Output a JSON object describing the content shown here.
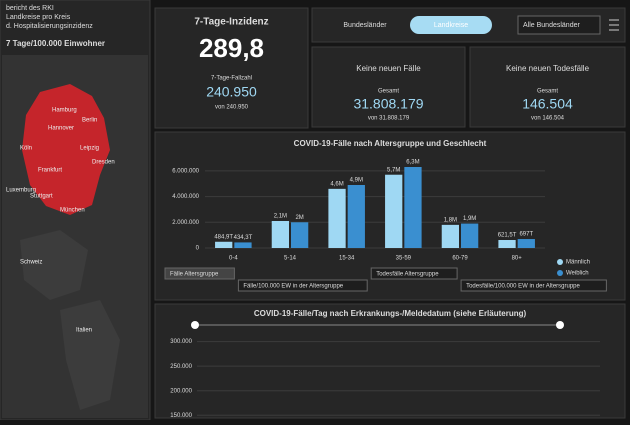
{
  "left_panel": {
    "header": [
      "bericht des RKI",
      "Landkreise pro Kreis",
      "d. Hospitalisierungsinzidenz"
    ],
    "subtitle": "7 Tage/100.000 Einwohner",
    "map_labels": [
      "Hamburg",
      "Berlin",
      "Hannover",
      "Leipzig",
      "Köln",
      "Dresden",
      "Frankfurt",
      "Stuttgart",
      "München",
      "Luxemburg",
      "Schweiz",
      "Italien"
    ]
  },
  "tabs": {
    "items": [
      "Bundesländer",
      "Landkreise"
    ],
    "active": 1,
    "dropdown": "Alle Bundesländer"
  },
  "tiles": [
    {
      "title": "7-Tage-Inzidenz",
      "value": "289,8",
      "sub_label": "7-Tage-Fallzahl",
      "sub_value": "240.950",
      "note": "von 240.950"
    },
    {
      "title": "Keine neuen Fälle",
      "sub_label": "Gesamt",
      "sub_value": "31.808.179",
      "note": "von 31.808.179"
    },
    {
      "title": "Keine neuen Todesfälle",
      "sub_label": "Gesamt",
      "sub_value": "146.504",
      "note": "von 146.504"
    }
  ],
  "age_chart": {
    "type": "bar",
    "title": "COVID-19-Fälle nach Altersgruppe und Geschlecht",
    "categories": [
      "0-4",
      "5-14",
      "15-34",
      "35-59",
      "60-79",
      "80+"
    ],
    "series": [
      {
        "name": "Männlich",
        "color": "#9fd8f3",
        "values": [
          484900,
          2100000,
          4600000,
          5700000,
          1800000,
          621500
        ],
        "value_labels": [
          "484,9T",
          "2,1M",
          "4,6M",
          "5,7M",
          "1,8M",
          "621,5T"
        ]
      },
      {
        "name": "Weiblich",
        "color": "#3a8fd0",
        "values": [
          434300,
          2000000,
          4900000,
          6300000,
          1900000,
          697000
        ],
        "value_labels": [
          "434,3T",
          "2M",
          "4,9M",
          "6,3M",
          "1,9M",
          "697T"
        ]
      }
    ],
    "ylim": [
      0,
      7000000
    ],
    "yticks": [
      0,
      {
        "value": 2000000,
        "label": "2.000.000"
      },
      {
        "value": 4000000,
        "label": "4.000.000"
      },
      {
        "value": 6000000,
        "label": "6.000.000"
      }
    ],
    "buttons": [
      "Fälle Altersgruppe",
      "Fälle/100.000 EW in der Altersgruppe",
      "Todesfälle Altersgruppe",
      "Todesfälle/100.000 EW in der Altersgruppe"
    ]
  },
  "daily_chart": {
    "title": "COVID-19-Fälle/Tag nach Erkrankungs-/Meldedatum (siehe Erläuterung)",
    "ylim": [
      120000,
      340000
    ],
    "yticks": [
      {
        "value": 150000,
        "label": "150.000"
      },
      {
        "value": 200000,
        "label": "200.000"
      },
      {
        "value": 250000,
        "label": "250.000"
      },
      {
        "value": 300000,
        "label": "300.000"
      }
    ]
  }
}
